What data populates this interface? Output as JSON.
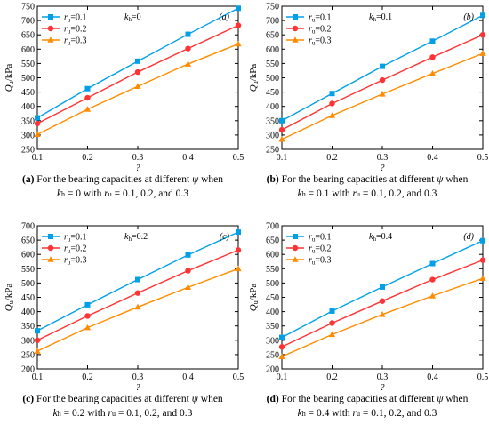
{
  "chart_data": [
    {
      "type": "line",
      "panel_tag": "(a)",
      "kh_label": "k",
      "kh_sub": "h",
      "kh_value": "=0",
      "ylabel": "Q",
      "ylabel_sub": "u",
      "ylabel_unit": "/kPa",
      "xlabel": "?",
      "xlim": [
        0.1,
        0.5
      ],
      "ylim": [
        250,
        750
      ],
      "xticks": [
        "0.1",
        "0.2",
        "0.3",
        "0.4",
        "0.5"
      ],
      "yticks": [
        "250",
        "300",
        "350",
        "400",
        "450",
        "500",
        "550",
        "600",
        "650",
        "700",
        "750"
      ],
      "x": [
        0.1,
        0.2,
        0.3,
        0.4,
        0.5
      ],
      "series": [
        {
          "name": "r",
          "name_sub": "u",
          "name_val": "=0.1",
          "color": "#00a0e9",
          "marker": "square",
          "values": [
            360,
            462,
            558,
            652,
            743
          ]
        },
        {
          "name": "r",
          "name_sub": "u",
          "name_val": "=0.2",
          "color": "#ff3333",
          "marker": "circle",
          "values": [
            340,
            430,
            520,
            602,
            683
          ]
        },
        {
          "name": "r",
          "name_sub": "u",
          "name_val": "=0.3",
          "color": "#ff8c00",
          "marker": "triangle",
          "values": [
            302,
            390,
            470,
            548,
            618
          ]
        }
      ],
      "caption": {
        "letter": "(a)",
        "text1": " For the bearing capacities at different ",
        "psi": "ψ",
        "text2": " when",
        "kh": "k",
        "kh_sub": "h",
        "text3": " = 0 with ",
        "ru": "r",
        "ru_sub": "u",
        "text4": " = 0.1, 0.2, and 0.3"
      }
    },
    {
      "type": "line",
      "panel_tag": "(b)",
      "kh_label": "k",
      "kh_sub": "h",
      "kh_value": "=0.1",
      "ylabel": "Q",
      "ylabel_sub": "u",
      "ylabel_unit": "/kPa",
      "xlabel": "?",
      "xlim": [
        0.1,
        0.5
      ],
      "ylim": [
        250,
        750
      ],
      "xticks": [
        "0.1",
        "0.2",
        "0.3",
        "0.4",
        "0.5"
      ],
      "yticks": [
        "250",
        "300",
        "350",
        "400",
        "450",
        "500",
        "550",
        "600",
        "650",
        "700",
        "750"
      ],
      "x": [
        0.1,
        0.2,
        0.3,
        0.4,
        0.5
      ],
      "series": [
        {
          "name": "r",
          "name_sub": "u",
          "name_val": "=0.1",
          "color": "#00a0e9",
          "marker": "square",
          "values": [
            350,
            445,
            540,
            628,
            718
          ]
        },
        {
          "name": "r",
          "name_sub": "u",
          "name_val": "=0.2",
          "color": "#ff3333",
          "marker": "circle",
          "values": [
            318,
            410,
            492,
            572,
            650
          ]
        },
        {
          "name": "r",
          "name_sub": "u",
          "name_val": "=0.3",
          "color": "#ff8c00",
          "marker": "triangle",
          "values": [
            285,
            368,
            443,
            515,
            585
          ]
        }
      ],
      "caption": {
        "letter": "(b)",
        "text1": " For the bearing capacities at different ",
        "psi": "ψ",
        "text2": " when",
        "kh": "k",
        "kh_sub": "h",
        "text3": " = 0.1 with ",
        "ru": "r",
        "ru_sub": "u",
        "text4": " = 0.1, 0.2, and 0.3"
      }
    },
    {
      "type": "line",
      "panel_tag": "(c)",
      "kh_label": "k",
      "kh_sub": "h",
      "kh_value": "=0.2",
      "ylabel": "Q",
      "ylabel_sub": "u",
      "ylabel_unit": "/kPa",
      "xlabel": "?",
      "xlim": [
        0.1,
        0.5
      ],
      "ylim": [
        200,
        700
      ],
      "xticks": [
        "0.1",
        "0.2",
        "0.3",
        "0.4",
        "0.5"
      ],
      "yticks": [
        "200",
        "250",
        "300",
        "350",
        "400",
        "450",
        "500",
        "550",
        "600",
        "650",
        "700"
      ],
      "x": [
        0.1,
        0.2,
        0.3,
        0.4,
        0.5
      ],
      "series": [
        {
          "name": "r",
          "name_sub": "u",
          "name_val": "=0.1",
          "color": "#00a0e9",
          "marker": "square",
          "values": [
            333,
            424,
            512,
            598,
            678
          ]
        },
        {
          "name": "r",
          "name_sub": "u",
          "name_val": "=0.2",
          "color": "#ff3333",
          "marker": "circle",
          "values": [
            300,
            385,
            465,
            543,
            615
          ]
        },
        {
          "name": "r",
          "name_sub": "u",
          "name_val": "=0.3",
          "color": "#ff8c00",
          "marker": "triangle",
          "values": [
            262,
            344,
            416,
            485,
            550
          ]
        }
      ],
      "caption": {
        "letter": "(c)",
        "text1": " For the bearing capacities at different ",
        "psi": "ψ",
        "text2": " when",
        "kh": "k",
        "kh_sub": "h",
        "text3": " = 0.2 with ",
        "ru": "r",
        "ru_sub": "u",
        "text4": " = 0.1, 0.2, and 0.3"
      }
    },
    {
      "type": "line",
      "panel_tag": "(d)",
      "kh_label": "k",
      "kh_sub": "h",
      "kh_value": "=0.4",
      "ylabel": "Q",
      "ylabel_sub": "u",
      "ylabel_unit": "/kPa",
      "xlabel": "?",
      "xlim": [
        0.1,
        0.5
      ],
      "ylim": [
        200,
        700
      ],
      "xticks": [
        "0.1",
        "0.2",
        "0.3",
        "0.4",
        "0.5"
      ],
      "yticks": [
        "200",
        "250",
        "300",
        "350",
        "400",
        "450",
        "500",
        "550",
        "600",
        "650",
        "700"
      ],
      "x": [
        0.1,
        0.2,
        0.3,
        0.4,
        0.5
      ],
      "series": [
        {
          "name": "r",
          "name_sub": "u",
          "name_val": "=0.1",
          "color": "#00a0e9",
          "marker": "square",
          "values": [
            310,
            402,
            486,
            568,
            648
          ]
        },
        {
          "name": "r",
          "name_sub": "u",
          "name_val": "=0.2",
          "color": "#ff3333",
          "marker": "circle",
          "values": [
            277,
            360,
            437,
            512,
            580
          ]
        },
        {
          "name": "r",
          "name_sub": "u",
          "name_val": "=0.3",
          "color": "#ff8c00",
          "marker": "triangle",
          "values": [
            243,
            320,
            390,
            455,
            516
          ]
        }
      ],
      "caption": {
        "letter": "(d)",
        "text1": " For the bearing capacities at different ",
        "psi": "ψ",
        "text2": " when",
        "kh": "k",
        "kh_sub": "h",
        "text3": " = 0.4 with ",
        "ru": "r",
        "ru_sub": "u",
        "text4": " = 0.1, 0.2, and 0.3"
      }
    }
  ]
}
